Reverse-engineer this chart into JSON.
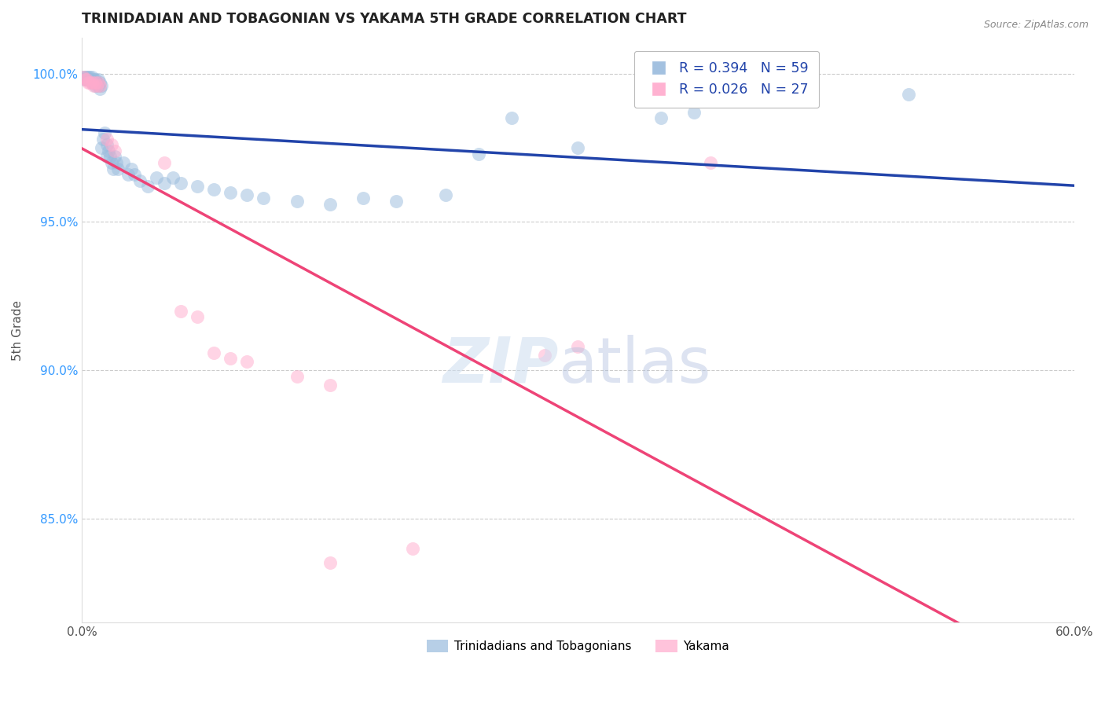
{
  "title": "TRINIDADIAN AND TOBAGONIAN VS YAKAMA 5TH GRADE CORRELATION CHART",
  "source_text": "Source: ZipAtlas.com",
  "ylabel": "5th Grade",
  "xlim": [
    0.0,
    0.6
  ],
  "ylim": [
    0.815,
    1.012
  ],
  "yticks": [
    0.85,
    0.9,
    0.95,
    1.0
  ],
  "ytick_labels": [
    "85.0%",
    "90.0%",
    "95.0%",
    "100.0%"
  ],
  "xticks": [
    0.0,
    0.15,
    0.3,
    0.45,
    0.6
  ],
  "xtick_labels": [
    "0.0%",
    "",
    "",
    "",
    "60.0%"
  ],
  "legend_r_blue": "R = 0.394",
  "legend_n_blue": "N = 59",
  "legend_r_pink": "R = 0.026",
  "legend_n_pink": "N = 27",
  "blue_color": "#99bbdd",
  "pink_color": "#ffaacc",
  "trendline_blue": "#2244aa",
  "trendline_pink": "#ee4477",
  "blue_label": "Trinidadians and Tobagonians",
  "pink_label": "Yakama",
  "blue_points": [
    [
      0.001,
      0.999
    ],
    [
      0.002,
      0.999
    ],
    [
      0.002,
      0.998
    ],
    [
      0.003,
      0.999
    ],
    [
      0.003,
      0.998
    ],
    [
      0.004,
      0.999
    ],
    [
      0.004,
      0.998
    ],
    [
      0.005,
      0.999
    ],
    [
      0.005,
      0.998
    ],
    [
      0.006,
      0.999
    ],
    [
      0.006,
      0.997
    ],
    [
      0.007,
      0.998
    ],
    [
      0.007,
      0.997
    ],
    [
      0.008,
      0.998
    ],
    [
      0.008,
      0.996
    ],
    [
      0.009,
      0.997
    ],
    [
      0.01,
      0.998
    ],
    [
      0.01,
      0.996
    ],
    [
      0.011,
      0.997
    ],
    [
      0.011,
      0.995
    ],
    [
      0.012,
      0.996
    ],
    [
      0.012,
      0.975
    ],
    [
      0.013,
      0.978
    ],
    [
      0.014,
      0.98
    ],
    [
      0.015,
      0.976
    ],
    [
      0.015,
      0.972
    ],
    [
      0.016,
      0.974
    ],
    [
      0.017,
      0.972
    ],
    [
      0.018,
      0.97
    ],
    [
      0.019,
      0.968
    ],
    [
      0.02,
      0.972
    ],
    [
      0.021,
      0.97
    ],
    [
      0.022,
      0.968
    ],
    [
      0.025,
      0.97
    ],
    [
      0.028,
      0.966
    ],
    [
      0.03,
      0.968
    ],
    [
      0.032,
      0.966
    ],
    [
      0.035,
      0.964
    ],
    [
      0.04,
      0.962
    ],
    [
      0.045,
      0.965
    ],
    [
      0.05,
      0.963
    ],
    [
      0.055,
      0.965
    ],
    [
      0.06,
      0.963
    ],
    [
      0.07,
      0.962
    ],
    [
      0.08,
      0.961
    ],
    [
      0.09,
      0.96
    ],
    [
      0.1,
      0.959
    ],
    [
      0.11,
      0.958
    ],
    [
      0.13,
      0.957
    ],
    [
      0.15,
      0.956
    ],
    [
      0.17,
      0.958
    ],
    [
      0.19,
      0.957
    ],
    [
      0.22,
      0.959
    ],
    [
      0.24,
      0.973
    ],
    [
      0.26,
      0.985
    ],
    [
      0.3,
      0.975
    ],
    [
      0.35,
      0.985
    ],
    [
      0.37,
      0.987
    ],
    [
      0.5,
      0.993
    ]
  ],
  "pink_points": [
    [
      0.001,
      0.999
    ],
    [
      0.002,
      0.998
    ],
    [
      0.003,
      0.998
    ],
    [
      0.004,
      0.997
    ],
    [
      0.005,
      0.997
    ],
    [
      0.006,
      0.997
    ],
    [
      0.007,
      0.996
    ],
    [
      0.008,
      0.997
    ],
    [
      0.009,
      0.996
    ],
    [
      0.01,
      0.997
    ],
    [
      0.011,
      0.996
    ],
    [
      0.015,
      0.978
    ],
    [
      0.018,
      0.976
    ],
    [
      0.02,
      0.974
    ],
    [
      0.05,
      0.97
    ],
    [
      0.06,
      0.92
    ],
    [
      0.07,
      0.918
    ],
    [
      0.08,
      0.906
    ],
    [
      0.09,
      0.904
    ],
    [
      0.1,
      0.903
    ],
    [
      0.13,
      0.898
    ],
    [
      0.15,
      0.895
    ],
    [
      0.28,
      0.905
    ],
    [
      0.3,
      0.908
    ],
    [
      0.38,
      0.97
    ],
    [
      0.15,
      0.835
    ],
    [
      0.2,
      0.84
    ]
  ]
}
